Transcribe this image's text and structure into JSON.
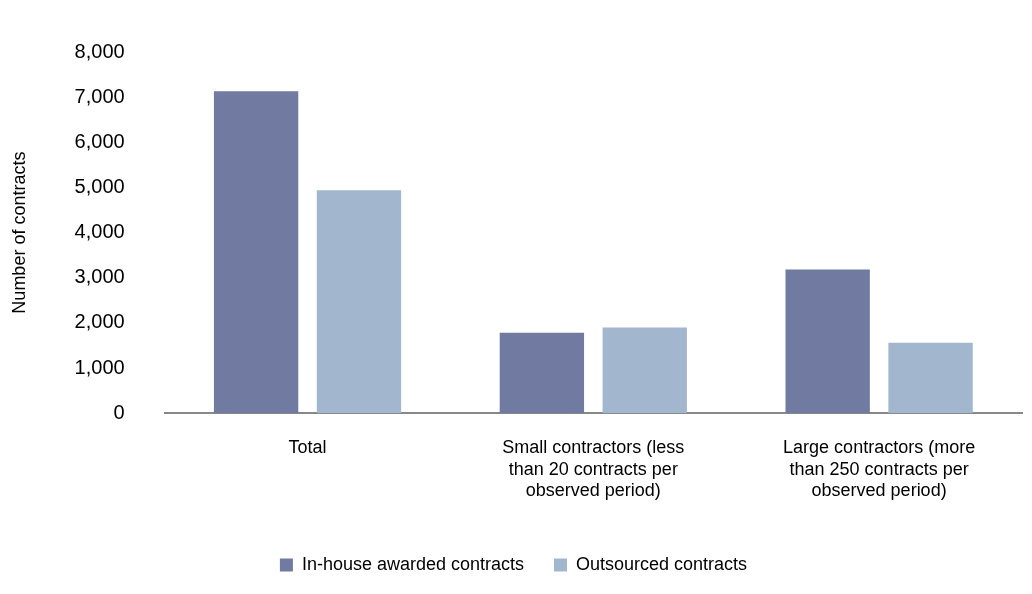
{
  "chart_data": {
    "type": "bar",
    "ylabel": "Number of contracts",
    "categories": [
      "Total",
      "Small contractors (less than 20 contracts per observed period)",
      "Large contractors (more than 250 contracts per observed period)"
    ],
    "series": [
      {
        "name": "In-house awarded contracts",
        "color": "#717aa0",
        "values": [
          7130,
          1780,
          3180
        ]
      },
      {
        "name": "Outsourced contracts",
        "color": "#a2b7cd",
        "values": [
          4940,
          1900,
          1560
        ]
      }
    ],
    "ylim": [
      0,
      8000
    ],
    "yticks": [
      {
        "value": 0,
        "label": "0"
      },
      {
        "value": 1000,
        "label": "1,000"
      },
      {
        "value": 2000,
        "label": "2,000"
      },
      {
        "value": 3000,
        "label": "3,000"
      },
      {
        "value": 4000,
        "label": "4,000"
      },
      {
        "value": 5000,
        "label": "5,000"
      },
      {
        "value": 6000,
        "label": "6,000"
      },
      {
        "value": 7000,
        "label": "7,000"
      },
      {
        "value": 8000,
        "label": "8,000"
      }
    ],
    "grid": false,
    "legend": "bottom"
  }
}
